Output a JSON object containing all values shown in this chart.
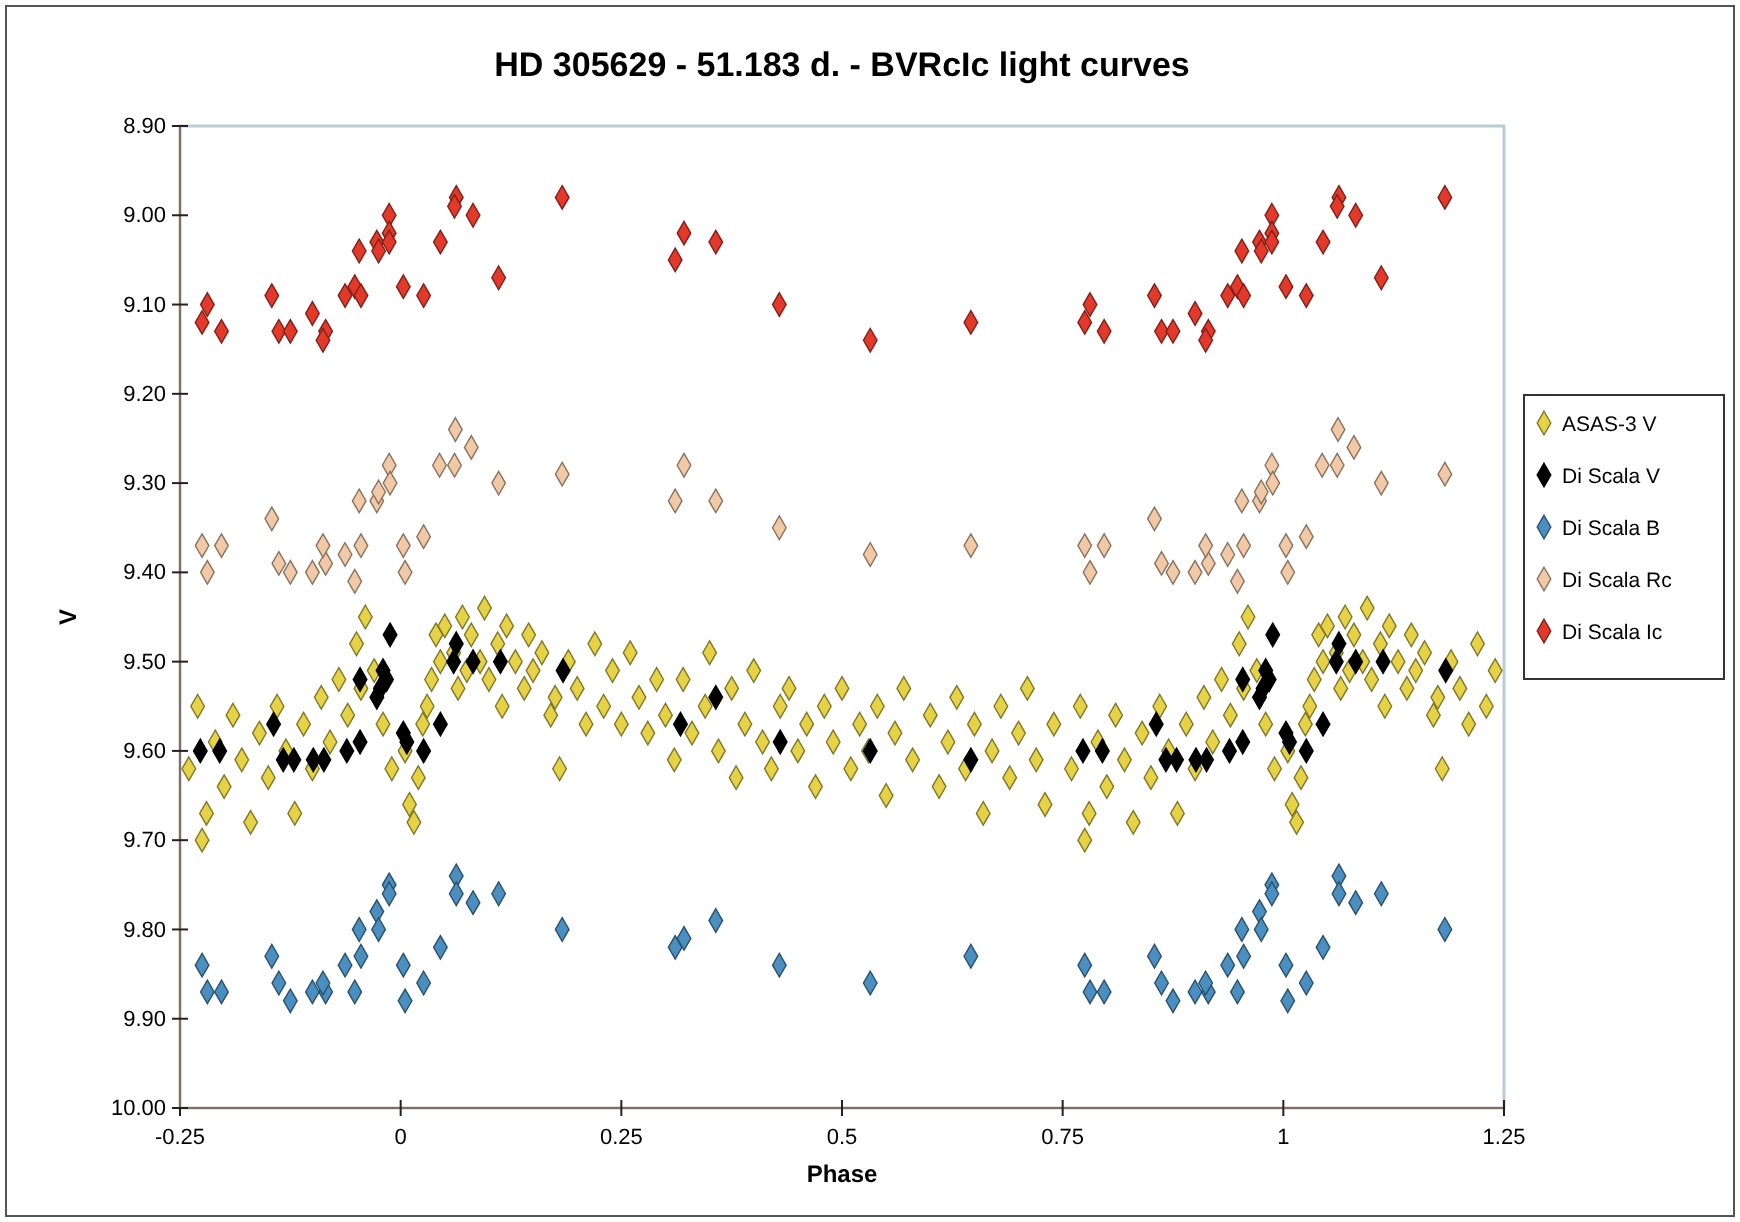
{
  "chart_data": {
    "type": "scatter",
    "title": "HD 305629 - 51.183 d. - BVRcIc light curves",
    "xlabel": "Phase",
    "ylabel": "V",
    "xlim": [
      -0.25,
      1.25
    ],
    "xticks": [
      -0.25,
      0,
      0.25,
      0.5,
      0.75,
      1,
      1.25
    ],
    "ylim": [
      10.0,
      8.9
    ],
    "yticks": [
      {
        "value": 8.9,
        "label": "8.90"
      },
      {
        "value": 9.0,
        "label": "9.00"
      },
      {
        "value": 9.1,
        "label": "9.10"
      },
      {
        "value": 9.2,
        "label": "9.20"
      },
      {
        "value": 9.3,
        "label": "9.30"
      },
      {
        "value": 9.4,
        "label": "9.40"
      },
      {
        "value": 9.5,
        "label": "9.50"
      },
      {
        "value": 9.6,
        "label": "9.60"
      },
      {
        "value": 9.7,
        "label": "9.70"
      },
      {
        "value": 9.8,
        "label": "9.80"
      },
      {
        "value": 9.9,
        "label": "9.90"
      },
      {
        "value": 10.0,
        "label": "10.00"
      }
    ],
    "grid": false,
    "legend": "right",
    "marker": "diamond",
    "series": [
      {
        "name": "ASAS-3 V",
        "color": "#e6d246",
        "x": [
          0.005,
          0.01,
          0.015,
          0.02,
          0.025,
          0.03,
          0.035,
          0.04,
          0.045,
          0.05,
          0.06,
          0.065,
          0.07,
          0.075,
          0.08,
          0.09,
          0.095,
          0.1,
          0.11,
          0.115,
          0.12,
          0.13,
          0.14,
          0.145,
          0.15,
          0.16,
          0.17,
          0.175,
          0.18,
          0.19,
          0.2,
          0.21,
          0.22,
          0.23,
          0.24,
          0.25,
          0.26,
          0.27,
          0.28,
          0.29,
          0.3,
          0.31,
          0.32,
          0.33,
          0.345,
          0.35,
          0.36,
          0.375,
          0.38,
          0.39,
          0.4,
          0.41,
          0.42,
          0.43,
          0.44,
          0.45,
          0.46,
          0.47,
          0.48,
          0.49,
          0.5,
          0.51,
          0.52,
          0.53,
          0.54,
          0.55,
          0.56,
          0.57,
          0.58,
          0.6,
          0.61,
          0.62,
          0.63,
          0.64,
          0.65,
          0.66,
          0.67,
          0.68,
          0.69,
          0.7,
          0.71,
          0.72,
          0.73,
          0.74,
          0.76,
          0.77,
          0.775,
          0.78,
          0.79,
          0.8,
          0.81,
          0.82,
          0.83,
          0.84,
          0.85,
          0.86,
          0.87,
          0.88,
          0.89,
          0.9,
          0.91,
          0.92,
          0.93,
          0.94,
          0.95,
          0.955,
          0.96,
          0.97,
          0.98,
          0.99,
          1.005,
          1.01,
          1.015,
          1.02,
          1.025,
          1.03,
          1.035,
          1.04,
          1.045,
          1.05,
          1.06,
          1.065,
          1.07,
          1.075,
          1.08,
          1.09,
          1.095,
          1.1,
          1.11,
          1.115,
          1.12,
          1.13,
          1.14,
          1.145,
          1.15,
          1.16,
          1.17,
          1.175,
          1.18,
          1.19,
          1.2,
          1.21,
          1.22,
          1.23,
          1.24,
          -0.24,
          -0.23,
          -0.225,
          -0.22,
          -0.21,
          -0.2,
          -0.19,
          -0.18,
          -0.17,
          -0.16,
          -0.15,
          -0.14,
          -0.13,
          -0.12,
          -0.11,
          -0.1,
          -0.09,
          -0.08,
          -0.07,
          -0.06,
          -0.05,
          -0.045,
          -0.04,
          -0.03,
          -0.02,
          -0.01
        ],
        "values": [
          9.6,
          9.66,
          9.68,
          9.63,
          9.57,
          9.55,
          9.52,
          9.47,
          9.5,
          9.46,
          9.49,
          9.53,
          9.45,
          9.51,
          9.47,
          9.5,
          9.44,
          9.52,
          9.48,
          9.55,
          9.46,
          9.5,
          9.53,
          9.47,
          9.51,
          9.49,
          9.56,
          9.54,
          9.62,
          9.5,
          9.53,
          9.57,
          9.48,
          9.55,
          9.51,
          9.57,
          9.49,
          9.54,
          9.58,
          9.52,
          9.56,
          9.61,
          9.52,
          9.58,
          9.55,
          9.49,
          9.6,
          9.53,
          9.63,
          9.57,
          9.51,
          9.59,
          9.62,
          9.55,
          9.53,
          9.6,
          9.57,
          9.64,
          9.55,
          9.59,
          9.53,
          9.62,
          9.57,
          9.6,
          9.55,
          9.65,
          9.58,
          9.53,
          9.61,
          9.56,
          9.64,
          9.59,
          9.54,
          9.62,
          9.57,
          9.67,
          9.6,
          9.55,
          9.63,
          9.58,
          9.53,
          9.61,
          9.66,
          9.57,
          9.62,
          9.55,
          9.7,
          9.67,
          9.59,
          9.64,
          9.56,
          9.61,
          9.68,
          9.58,
          9.63,
          9.55,
          9.6,
          9.67,
          9.57,
          9.62,
          9.54,
          9.59,
          9.52,
          9.56,
          9.48,
          9.53,
          9.45,
          9.51,
          9.57,
          9.62,
          9.6,
          9.66,
          9.68,
          9.63,
          9.57,
          9.55,
          9.52,
          9.47,
          9.5,
          9.46,
          9.49,
          9.53,
          9.45,
          9.51,
          9.47,
          9.5,
          9.44,
          9.52,
          9.48,
          9.55,
          9.46,
          9.5,
          9.53,
          9.47,
          9.51,
          9.49,
          9.56,
          9.54,
          9.62,
          9.5,
          9.53,
          9.57,
          9.48,
          9.55,
          9.51,
          9.62,
          9.55,
          9.7,
          9.67,
          9.59,
          9.64,
          9.56,
          9.61,
          9.68,
          9.58,
          9.63,
          9.55,
          9.6,
          9.67,
          9.57,
          9.62,
          9.54,
          9.59,
          9.52,
          9.56,
          9.48,
          9.53,
          9.45,
          9.51,
          9.57,
          9.62
        ]
      },
      {
        "name": "Di Scala V",
        "color": "#000000",
        "x": [
          -0.227,
          -0.205,
          -0.144,
          -0.133,
          -0.121,
          -0.099,
          -0.087,
          -0.061,
          -0.046,
          -0.046,
          -0.027,
          -0.023,
          -0.02,
          -0.016,
          -0.012,
          0.003,
          0.007,
          0.026,
          0.045,
          0.06,
          0.063,
          0.082,
          0.113,
          0.184,
          0.317,
          0.357,
          0.43,
          0.532,
          0.646,
          0.773,
          0.795,
          0.856,
          0.867,
          0.879,
          0.901,
          0.913,
          0.939,
          0.954,
          0.954,
          0.973,
          0.977,
          0.98,
          0.984,
          0.988,
          1.003,
          1.007,
          1.026,
          1.045,
          1.06,
          1.063,
          1.082,
          1.113,
          1.184
        ],
        "values": [
          9.6,
          9.6,
          9.57,
          9.61,
          9.61,
          9.61,
          9.61,
          9.6,
          9.59,
          9.52,
          9.54,
          9.53,
          9.51,
          9.52,
          9.47,
          9.58,
          9.59,
          9.6,
          9.57,
          9.5,
          9.48,
          9.5,
          9.5,
          9.51,
          9.57,
          9.54,
          9.59,
          9.6,
          9.61,
          9.6,
          9.6,
          9.57,
          9.61,
          9.61,
          9.61,
          9.61,
          9.6,
          9.59,
          9.52,
          9.54,
          9.53,
          9.51,
          9.52,
          9.47,
          9.58,
          9.59,
          9.6,
          9.57,
          9.5,
          9.48,
          9.5,
          9.5,
          9.51
        ]
      },
      {
        "name": "Di Scala B",
        "color": "#4a8fc0",
        "x": [
          -0.225,
          -0.219,
          -0.203,
          -0.146,
          -0.138,
          -0.125,
          -0.1,
          -0.085,
          -0.088,
          -0.063,
          -0.045,
          -0.052,
          -0.047,
          -0.027,
          -0.025,
          -0.013,
          -0.013,
          0.003,
          0.005,
          0.026,
          0.045,
          0.063,
          0.063,
          0.082,
          0.111,
          0.183,
          0.311,
          0.321,
          0.357,
          0.429,
          0.532,
          0.646,
          0.775,
          0.781,
          0.797,
          0.854,
          0.862,
          0.875,
          0.9,
          0.915,
          0.912,
          0.937,
          0.955,
          0.948,
          0.953,
          0.973,
          0.975,
          0.987,
          0.987,
          1.003,
          1.005,
          1.026,
          1.045,
          1.063,
          1.063,
          1.082,
          1.111,
          1.183
        ],
        "values": [
          9.84,
          9.87,
          9.87,
          9.83,
          9.86,
          9.88,
          9.87,
          9.87,
          9.86,
          9.84,
          9.83,
          9.87,
          9.8,
          9.78,
          9.8,
          9.75,
          9.76,
          9.84,
          9.88,
          9.86,
          9.82,
          9.74,
          9.76,
          9.77,
          9.76,
          9.8,
          9.82,
          9.81,
          9.79,
          9.84,
          9.86,
          9.83,
          9.84,
          9.87,
          9.87,
          9.83,
          9.86,
          9.88,
          9.87,
          9.87,
          9.86,
          9.84,
          9.83,
          9.87,
          9.8,
          9.78,
          9.8,
          9.75,
          9.76,
          9.84,
          9.88,
          9.86,
          9.82,
          9.74,
          9.76,
          9.77,
          9.76,
          9.8
        ]
      },
      {
        "name": "Di Scala Rc",
        "color": "#f2c9a6",
        "x": [
          -0.225,
          -0.203,
          -0.219,
          -0.146,
          -0.138,
          -0.125,
          -0.1,
          -0.085,
          -0.088,
          -0.063,
          -0.045,
          -0.052,
          -0.047,
          -0.027,
          -0.025,
          -0.013,
          -0.012,
          0.003,
          0.005,
          0.026,
          0.044,
          0.061,
          0.062,
          0.08,
          0.111,
          0.183,
          0.311,
          0.321,
          0.357,
          0.429,
          0.532,
          0.646,
          0.775,
          0.797,
          0.781,
          0.854,
          0.862,
          0.875,
          0.9,
          0.915,
          0.912,
          0.937,
          0.955,
          0.948,
          0.953,
          0.973,
          0.975,
          0.987,
          0.988,
          1.003,
          1.005,
          1.026,
          1.044,
          1.061,
          1.062,
          1.08,
          1.111,
          1.183
        ],
        "values": [
          9.37,
          9.37,
          9.4,
          9.34,
          9.39,
          9.4,
          9.4,
          9.39,
          9.37,
          9.38,
          9.37,
          9.41,
          9.32,
          9.32,
          9.31,
          9.28,
          9.3,
          9.37,
          9.4,
          9.36,
          9.28,
          9.28,
          9.24,
          9.26,
          9.3,
          9.29,
          9.32,
          9.28,
          9.32,
          9.35,
          9.38,
          9.37,
          9.37,
          9.37,
          9.4,
          9.34,
          9.39,
          9.4,
          9.4,
          9.39,
          9.37,
          9.38,
          9.37,
          9.41,
          9.32,
          9.32,
          9.31,
          9.28,
          9.3,
          9.37,
          9.4,
          9.36,
          9.28,
          9.28,
          9.24,
          9.26,
          9.3,
          9.29
        ]
      },
      {
        "name": "Di Scala Ic",
        "color": "#e2392b",
        "x": [
          -0.219,
          -0.225,
          -0.203,
          -0.146,
          -0.138,
          -0.125,
          -0.1,
          -0.085,
          -0.088,
          -0.063,
          -0.052,
          -0.045,
          -0.047,
          -0.027,
          -0.025,
          -0.013,
          -0.013,
          -0.013,
          0.003,
          0.026,
          0.045,
          0.063,
          0.061,
          0.082,
          0.111,
          0.183,
          0.311,
          0.321,
          0.357,
          0.429,
          0.532,
          0.646,
          0.781,
          0.775,
          0.797,
          0.854,
          0.862,
          0.875,
          0.9,
          0.915,
          0.912,
          0.937,
          0.948,
          0.955,
          0.953,
          0.973,
          0.975,
          0.987,
          0.987,
          0.987,
          1.003,
          1.026,
          1.045,
          1.063,
          1.061,
          1.082,
          1.111,
          1.183
        ],
        "values": [
          9.1,
          9.12,
          9.13,
          9.09,
          9.13,
          9.13,
          9.11,
          9.13,
          9.14,
          9.09,
          9.08,
          9.09,
          9.04,
          9.03,
          9.04,
          9.0,
          9.02,
          9.03,
          9.08,
          9.09,
          9.03,
          8.98,
          8.99,
          9.0,
          9.07,
          8.98,
          9.05,
          9.02,
          9.03,
          9.1,
          9.14,
          9.12,
          9.1,
          9.12,
          9.13,
          9.09,
          9.13,
          9.13,
          9.11,
          9.13,
          9.14,
          9.09,
          9.08,
          9.09,
          9.04,
          9.03,
          9.04,
          9.0,
          9.02,
          9.03,
          9.08,
          9.09,
          9.03,
          8.98,
          8.99,
          9.0,
          9.07,
          8.98
        ]
      }
    ]
  }
}
